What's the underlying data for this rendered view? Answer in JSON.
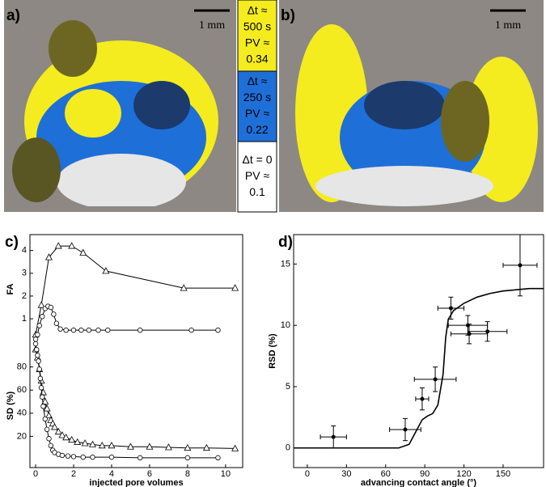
{
  "panel_labels": [
    "a)",
    "b)",
    "c)",
    "d)"
  ],
  "images": [
    {
      "scale_bar": "1 mm"
    },
    {
      "scale_bar": "1 mm"
    }
  ],
  "legend": [
    {
      "lines": [
        "Δt ≈",
        "500 s",
        "PV ≈",
        "0.34"
      ],
      "color": "#f4ec1e"
    },
    {
      "lines": [
        "Δt ≈",
        "250 s",
        "PV ≈",
        "0.22"
      ],
      "color": "#1f6fd8"
    },
    {
      "lines": [
        "Δt = 0",
        "PV ≈",
        "0.1"
      ],
      "color": "#ffffff"
    }
  ],
  "chart_data": [
    {
      "type": "line",
      "y_label": "FA",
      "xlim": [
        -0.3,
        10.9
      ],
      "ylim": [
        -0.1,
        4.7
      ],
      "yticks": [
        1,
        2,
        3,
        4
      ],
      "series": [
        {
          "marker": "triangle",
          "color": "#000000",
          "x": [
            0,
            0.3,
            0.7,
            1.2,
            1.9,
            2.5,
            3.7,
            7.8,
            10.5
          ],
          "values": [
            0.3,
            1.6,
            3.7,
            4.2,
            4.2,
            3.9,
            3.1,
            2.35,
            2.35
          ]
        },
        {
          "marker": "circle",
          "color": "#000000",
          "x": [
            0,
            0.1,
            0.2,
            0.35,
            0.5,
            0.65,
            0.8,
            0.95,
            1.1,
            1.3,
            1.6,
            2.0,
            2.4,
            2.8,
            3.3,
            3.8,
            5.5,
            8.2,
            9.6
          ],
          "values": [
            0.1,
            0.3,
            0.7,
            1.1,
            1.45,
            1.55,
            1.5,
            1.2,
            0.8,
            0.55,
            0.5,
            0.5,
            0.5,
            0.5,
            0.5,
            0.5,
            0.5,
            0.5,
            0.5
          ]
        }
      ]
    },
    {
      "type": "line",
      "y_label": "SD (%)",
      "x_label": "injected pore volumes",
      "xlim": [
        -0.3,
        10.9
      ],
      "xticks": [
        0,
        2,
        4,
        6,
        8,
        10
      ],
      "ylim": [
        -7,
        100
      ],
      "yticks": [
        20,
        40,
        60,
        80
      ],
      "series": [
        {
          "marker": "triangle",
          "color": "#000000",
          "x": [
            0,
            0.1,
            0.2,
            0.3,
            0.4,
            0.5,
            0.6,
            0.7,
            0.8,
            0.9,
            1.0,
            1.2,
            1.4,
            1.6,
            1.9,
            2.2,
            2.6,
            3.0,
            3.5,
            4,
            5,
            6,
            7,
            8,
            9,
            10.5
          ],
          "values": [
            95,
            88,
            78,
            68,
            58,
            50,
            44,
            38,
            34,
            31,
            28,
            24,
            21,
            19,
            17,
            15,
            14,
            13,
            12,
            12,
            11,
            11,
            10.5,
            10,
            10,
            9.5
          ]
        },
        {
          "marker": "circle",
          "color": "#000000",
          "x": [
            0,
            0.05,
            0.1,
            0.15,
            0.2,
            0.25,
            0.3,
            0.35,
            0.4,
            0.5,
            0.6,
            0.7,
            0.8,
            0.9,
            1.0,
            1.2,
            1.4,
            1.7,
            2.0,
            2.5,
            3,
            4,
            5.5,
            8,
            9.6
          ],
          "values": [
            100,
            95,
            90,
            85,
            78,
            70,
            62,
            54,
            46,
            35,
            26,
            18,
            12,
            8,
            6,
            4.5,
            3.5,
            3,
            2.5,
            2,
            2,
            2,
            1.5,
            1.5,
            1.5
          ]
        }
      ]
    },
    {
      "type": "errorbar",
      "y_label": "RSD (%)",
      "x_label": "advancing contact angle (°)",
      "xlim": [
        -10.5,
        181
      ],
      "xticks": [
        0,
        30,
        60,
        90,
        120,
        150
      ],
      "ylim": [
        -1.6,
        17.4
      ],
      "yticks": [
        0,
        5,
        10,
        15
      ],
      "points": {
        "x": [
          20,
          75,
          88,
          98,
          110,
          123,
          124,
          138,
          163
        ],
        "y": [
          0.9,
          1.5,
          4.0,
          5.6,
          11.4,
          10.0,
          9.3,
          9.5,
          14.9
        ],
        "xerr": [
          10,
          12,
          5,
          16,
          10,
          15,
          14,
          15,
          13
        ],
        "yerr": [
          0.9,
          0.9,
          0.9,
          1.0,
          0.9,
          0.8,
          0.8,
          0.8,
          2.5
        ],
        "color": "#000000"
      },
      "curve": {
        "x": [
          -10,
          70,
          78,
          84,
          88,
          92,
          96,
          100,
          104,
          106,
          108,
          112,
          120,
          130,
          140,
          150,
          160,
          170,
          181
        ],
        "values": [
          0,
          0,
          0.3,
          1.5,
          2.3,
          2.6,
          2.8,
          3.5,
          6,
          9,
          10.5,
          11.2,
          11.8,
          12.3,
          12.6,
          12.8,
          12.9,
          13,
          13
        ],
        "color": "#000000"
      }
    }
  ]
}
